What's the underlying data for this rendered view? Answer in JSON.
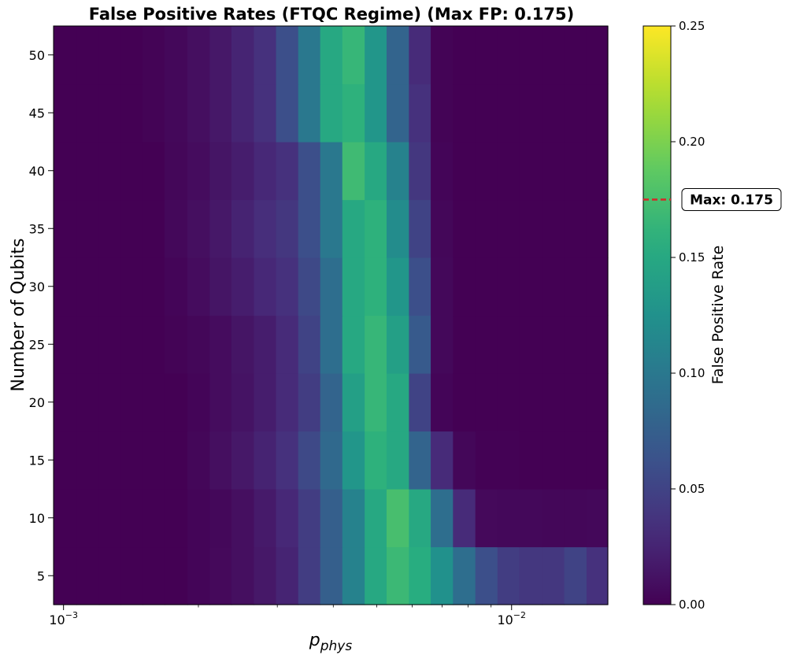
{
  "chart_data": {
    "type": "heatmap",
    "title": "False Positive Rates (FTQC Regime) (Max FP: 0.175)",
    "xlabel_main": "p",
    "xlabel_sub": "phys",
    "ylabel": "Number of Qubits",
    "colorbar_label": "False Positive Rate",
    "colormap": "viridis",
    "x_scale": "log",
    "x_tick_labels": [
      {
        "value": 0.001,
        "base": "10",
        "exp": "−3"
      },
      {
        "value": 0.01,
        "base": "10",
        "exp": "−2"
      }
    ],
    "y_tick_labels": [
      "5",
      "10",
      "15",
      "20",
      "25",
      "30",
      "35",
      "40",
      "45",
      "50"
    ],
    "y_ticks": [
      5,
      10,
      15,
      20,
      25,
      30,
      35,
      40,
      45,
      50
    ],
    "color_range": [
      0.0,
      0.25
    ],
    "colorbar_tick_labels": [
      "0.00",
      "0.05",
      "0.10",
      "0.15",
      "0.20",
      "0.25"
    ],
    "colorbar_ticks": [
      0.0,
      0.05,
      0.1,
      0.15,
      0.2,
      0.25
    ],
    "max_label": "Max: 0.175",
    "max_value": 0.175,
    "x_bin_edges": [
      0.00095,
      0.00107,
      0.0012,
      0.00134,
      0.0015,
      0.00168,
      0.00189,
      0.00212,
      0.00237,
      0.00266,
      0.00298,
      0.00334,
      0.00374,
      0.00419,
      0.0047,
      0.00526,
      0.0059,
      0.0066,
      0.0074,
      0.0083,
      0.0093,
      0.0104,
      0.0117,
      0.0131,
      0.0147,
      0.0164
    ],
    "y_bin_edges": [
      2.5,
      7.5,
      12.5,
      17.5,
      22.5,
      27.5,
      32.5,
      37.5,
      42.5,
      47.5,
      52.5
    ],
    "rows_qubits": [
      5,
      10,
      15,
      20,
      25,
      30,
      35,
      40,
      45,
      50
    ],
    "values": [
      [
        0.0,
        0.0,
        0.0,
        0.0,
        0.0,
        0.0,
        0.003,
        0.006,
        0.01,
        0.016,
        0.025,
        0.045,
        0.075,
        0.11,
        0.15,
        0.168,
        0.155,
        0.125,
        0.09,
        0.06,
        0.045,
        0.04,
        0.04,
        0.05,
        0.035
      ],
      [
        0.0,
        0.0,
        0.0,
        0.0,
        0.0,
        0.0,
        0.003,
        0.005,
        0.01,
        0.018,
        0.028,
        0.045,
        0.075,
        0.11,
        0.15,
        0.175,
        0.15,
        0.09,
        0.03,
        0.006,
        0.005,
        0.005,
        0.004,
        0.004,
        0.005
      ],
      [
        0.0,
        0.0,
        0.0,
        0.0,
        0.0,
        0.0,
        0.004,
        0.01,
        0.016,
        0.024,
        0.035,
        0.055,
        0.085,
        0.13,
        0.16,
        0.15,
        0.08,
        0.03,
        0.004,
        0.001,
        0.001,
        0.0,
        0.0,
        0.0,
        0.0
      ],
      [
        0.0,
        0.0,
        0.0,
        0.0,
        0.0,
        0.0,
        0.003,
        0.008,
        0.013,
        0.02,
        0.03,
        0.045,
        0.08,
        0.14,
        0.165,
        0.15,
        0.05,
        0.003,
        0.0,
        0.0,
        0.0,
        0.0,
        0.0,
        0.0,
        0.0
      ],
      [
        0.0,
        0.0,
        0.0,
        0.0,
        0.0,
        0.002,
        0.004,
        0.008,
        0.014,
        0.02,
        0.03,
        0.05,
        0.09,
        0.15,
        0.165,
        0.14,
        0.07,
        0.005,
        0.0,
        0.0,
        0.0,
        0.0,
        0.0,
        0.0,
        0.0
      ],
      [
        0.0,
        0.0,
        0.0,
        0.0,
        0.0,
        0.003,
        0.008,
        0.014,
        0.02,
        0.028,
        0.035,
        0.055,
        0.09,
        0.15,
        0.16,
        0.13,
        0.06,
        0.005,
        0.0,
        0.0,
        0.0,
        0.0,
        0.0,
        0.0,
        0.0
      ],
      [
        0.0,
        0.0,
        0.0,
        0.0,
        0.0,
        0.005,
        0.01,
        0.016,
        0.024,
        0.032,
        0.04,
        0.06,
        0.1,
        0.15,
        0.16,
        0.12,
        0.05,
        0.004,
        0.0,
        0.0,
        0.0,
        0.0,
        0.0,
        0.0,
        0.0
      ],
      [
        0.0,
        0.0,
        0.0,
        0.0,
        0.0,
        0.004,
        0.008,
        0.014,
        0.02,
        0.028,
        0.035,
        0.06,
        0.1,
        0.17,
        0.15,
        0.11,
        0.04,
        0.003,
        0.0,
        0.0,
        0.0,
        0.0,
        0.0,
        0.0,
        0.0
      ],
      [
        0.0,
        0.0,
        0.0,
        0.0,
        0.002,
        0.005,
        0.01,
        0.016,
        0.025,
        0.035,
        0.06,
        0.1,
        0.15,
        0.16,
        0.13,
        0.08,
        0.035,
        0.002,
        0.0,
        0.0,
        0.0,
        0.0,
        0.0,
        0.0,
        0.0
      ],
      [
        0.0,
        0.0,
        0.0,
        0.0,
        0.002,
        0.005,
        0.01,
        0.016,
        0.025,
        0.035,
        0.06,
        0.1,
        0.15,
        0.165,
        0.13,
        0.08,
        0.03,
        0.002,
        0.0,
        0.0,
        0.0,
        0.0,
        0.0,
        0.0,
        0.0
      ]
    ]
  }
}
